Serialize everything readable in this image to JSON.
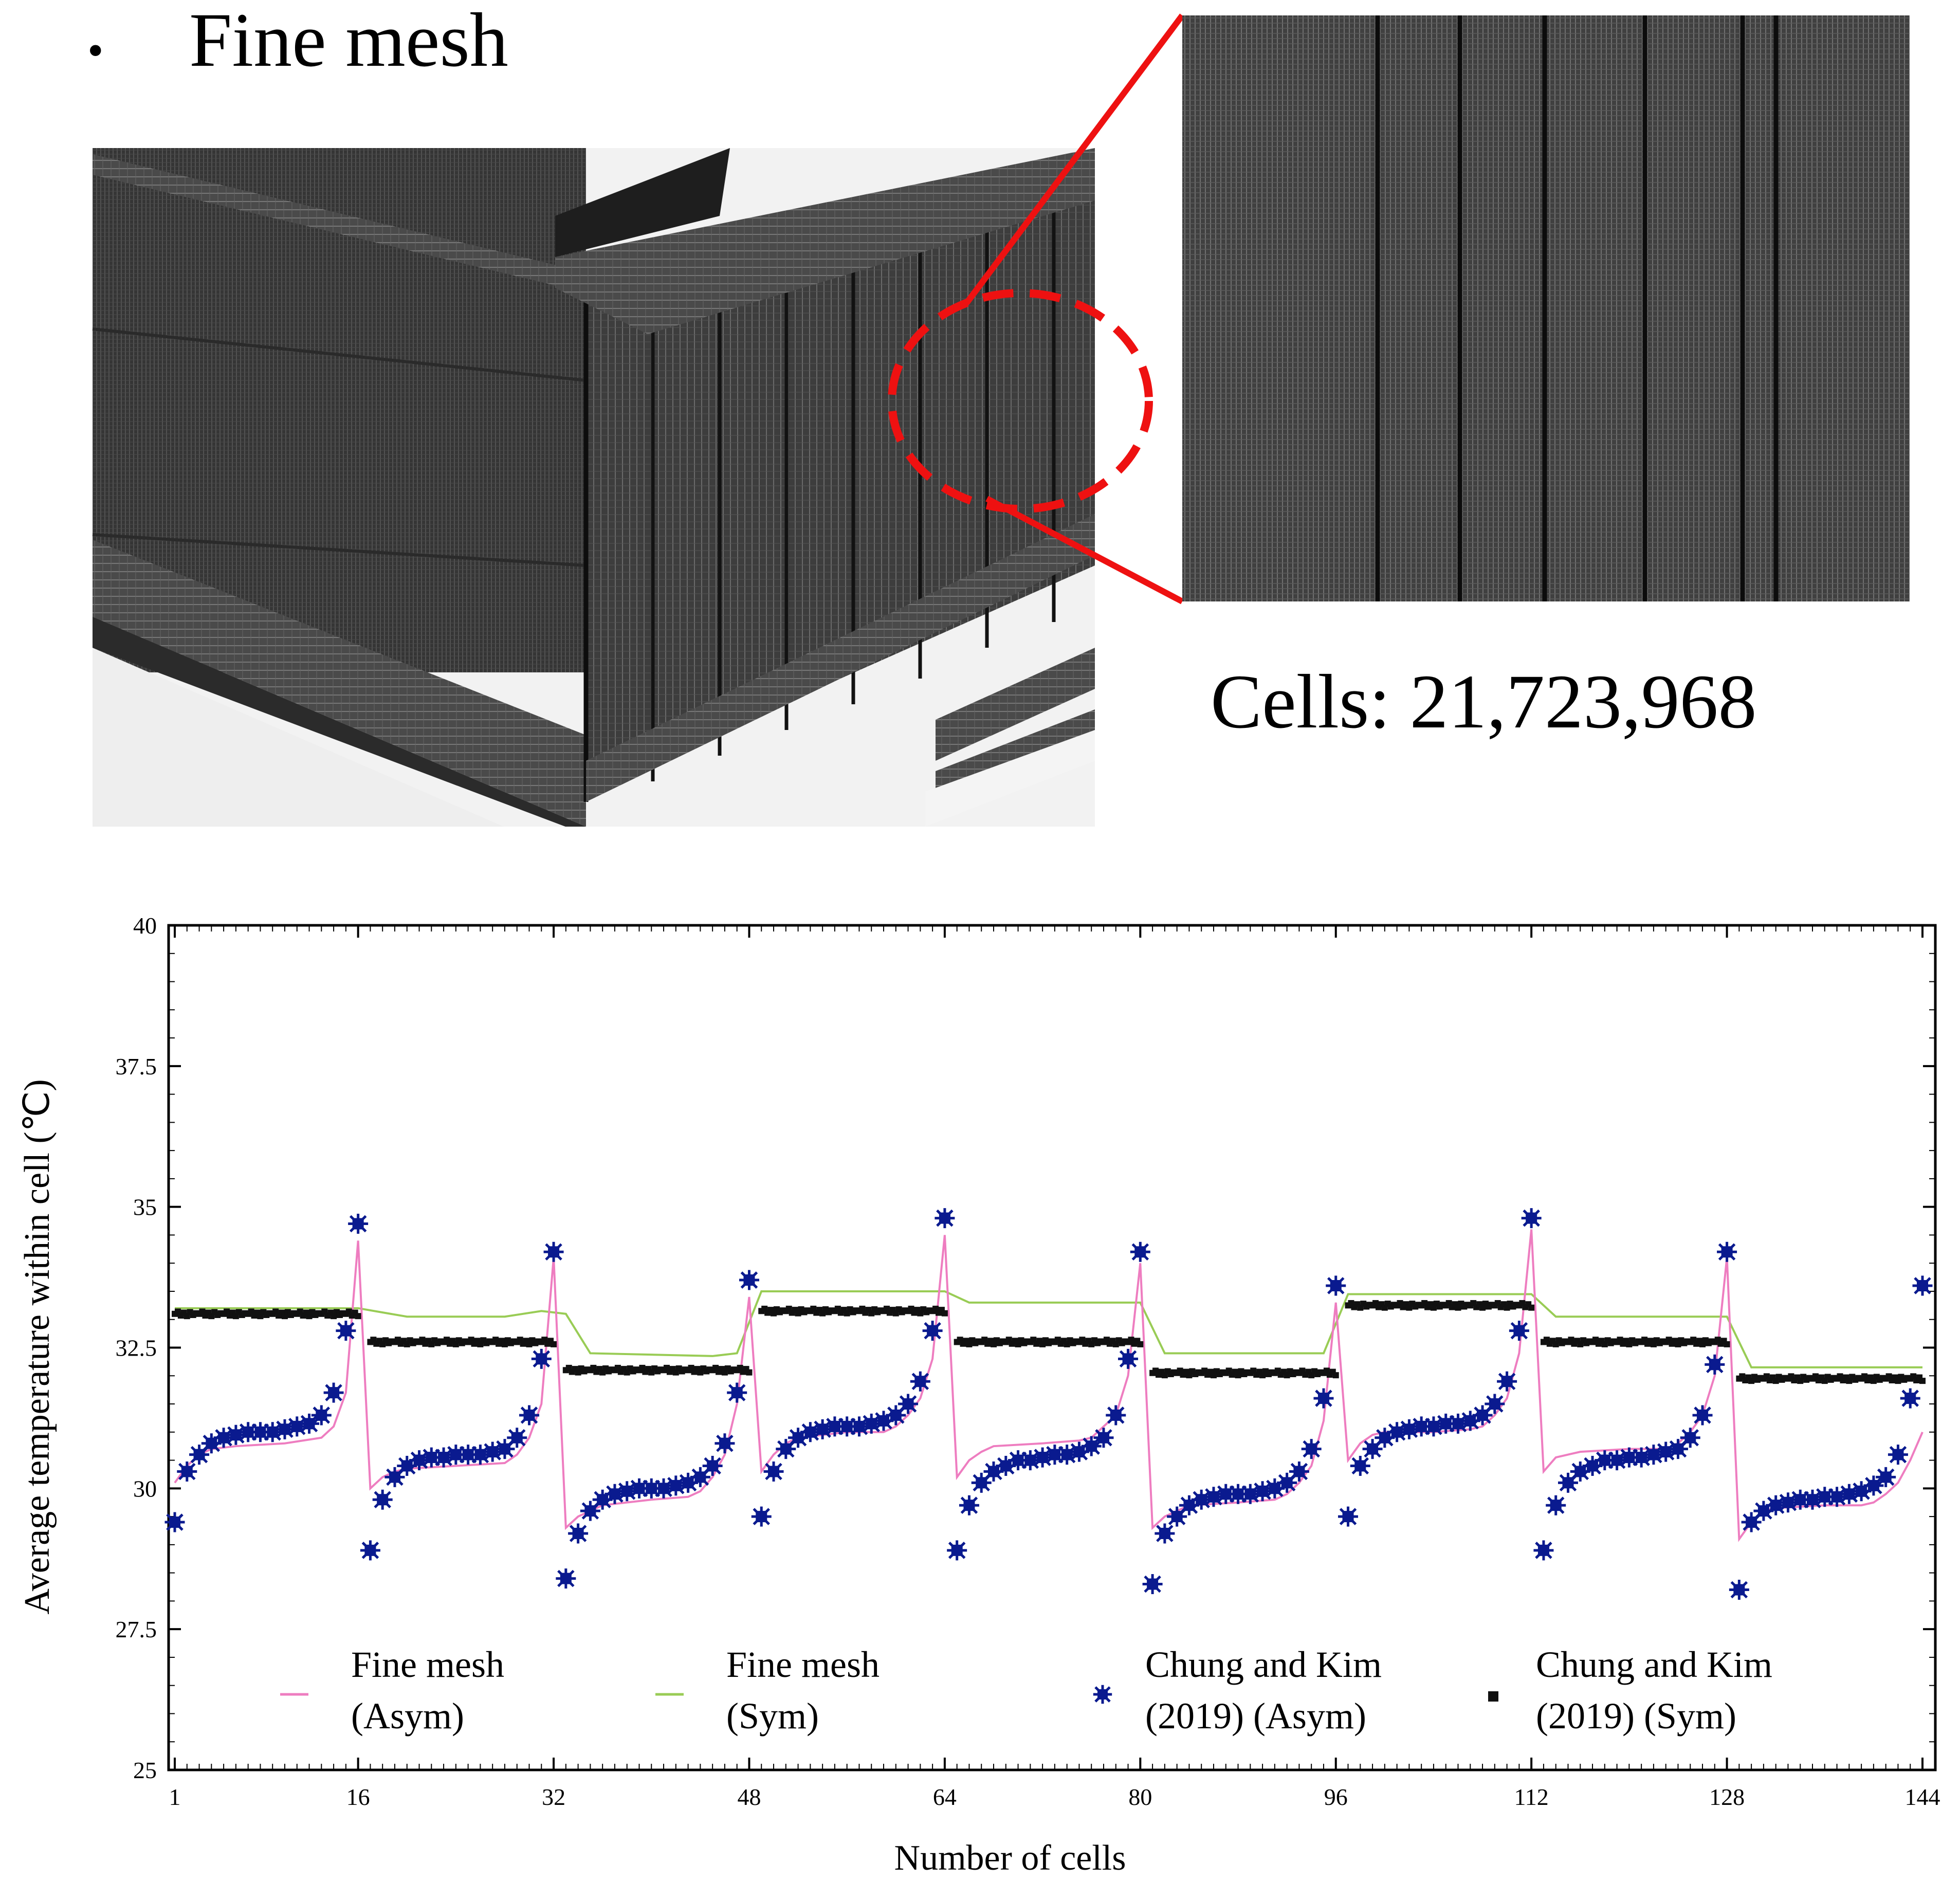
{
  "header": {
    "bullet": "•",
    "title": "Fine mesh"
  },
  "mesh_figure": {
    "cells_label": "Cells: 21,723,968",
    "colors": {
      "mesh_face": "#404040",
      "mesh_dark": "#2a2a2a",
      "highlight": "#ee1111"
    }
  },
  "chart_data": {
    "type": "line",
    "xlabel": "Number of cells",
    "ylabel": "Average temperature within cell (℃)",
    "xlim": [
      1,
      144
    ],
    "ylim": [
      25,
      40
    ],
    "x_ticks": [
      1,
      16,
      32,
      48,
      64,
      80,
      96,
      112,
      128,
      144
    ],
    "y_ticks": [
      25,
      27.5,
      30,
      32.5,
      35,
      37.5,
      40
    ],
    "y_tick_labels": [
      "25",
      "27.5",
      "30",
      "32.5",
      "35",
      "37.5",
      "40"
    ],
    "grid": false,
    "legend": [
      {
        "line1": "Fine mesh",
        "line2": "(Asym)",
        "color": "#ee7dc0",
        "marker": "line"
      },
      {
        "line1": "Fine mesh",
        "line2": "(Sym)",
        "color": "#99cc55",
        "marker": "line"
      },
      {
        "line1": "Chung and Kim",
        "line2": "(2019)  (Asym)",
        "color": "#0a1a8f",
        "marker": "x"
      },
      {
        "line1": "Chung and Kim",
        "line2": "(2019)  (Sym)",
        "color": "#111111",
        "marker": "square"
      }
    ],
    "asym_ref_points": [
      [
        1,
        29.4
      ],
      [
        2,
        30.3
      ],
      [
        3,
        30.6
      ],
      [
        4,
        30.8
      ],
      [
        5,
        30.9
      ],
      [
        6,
        30.95
      ],
      [
        7,
        31.0
      ],
      [
        8,
        31.0
      ],
      [
        9,
        31.0
      ],
      [
        10,
        31.05
      ],
      [
        11,
        31.1
      ],
      [
        12,
        31.15
      ],
      [
        13,
        31.3
      ],
      [
        14,
        31.7
      ],
      [
        15,
        32.8
      ],
      [
        16,
        34.7
      ],
      [
        17,
        28.9
      ],
      [
        18,
        29.8
      ],
      [
        19,
        30.2
      ],
      [
        20,
        30.4
      ],
      [
        21,
        30.5
      ],
      [
        22,
        30.55
      ],
      [
        23,
        30.55
      ],
      [
        24,
        30.6
      ],
      [
        25,
        30.6
      ],
      [
        26,
        30.6
      ],
      [
        27,
        30.65
      ],
      [
        28,
        30.7
      ],
      [
        29,
        30.9
      ],
      [
        30,
        31.3
      ],
      [
        31,
        32.3
      ],
      [
        32,
        34.2
      ],
      [
        33,
        28.4
      ],
      [
        34,
        29.2
      ],
      [
        35,
        29.6
      ],
      [
        36,
        29.8
      ],
      [
        37,
        29.9
      ],
      [
        38,
        29.95
      ],
      [
        39,
        30.0
      ],
      [
        40,
        30.0
      ],
      [
        41,
        30.0
      ],
      [
        42,
        30.05
      ],
      [
        43,
        30.1
      ],
      [
        44,
        30.2
      ],
      [
        45,
        30.4
      ],
      [
        46,
        30.8
      ],
      [
        47,
        31.7
      ],
      [
        48,
        33.7
      ],
      [
        49,
        29.5
      ],
      [
        50,
        30.3
      ],
      [
        51,
        30.7
      ],
      [
        52,
        30.9
      ],
      [
        53,
        31.0
      ],
      [
        54,
        31.05
      ],
      [
        55,
        31.1
      ],
      [
        56,
        31.1
      ],
      [
        57,
        31.1
      ],
      [
        58,
        31.15
      ],
      [
        59,
        31.2
      ],
      [
        60,
        31.3
      ],
      [
        61,
        31.5
      ],
      [
        62,
        31.9
      ],
      [
        63,
        32.8
      ],
      [
        64,
        34.8
      ],
      [
        65,
        28.9
      ],
      [
        66,
        29.7
      ],
      [
        67,
        30.1
      ],
      [
        68,
        30.3
      ],
      [
        69,
        30.4
      ],
      [
        70,
        30.5
      ],
      [
        71,
        30.5
      ],
      [
        72,
        30.55
      ],
      [
        73,
        30.6
      ],
      [
        74,
        30.6
      ],
      [
        75,
        30.65
      ],
      [
        76,
        30.75
      ],
      [
        77,
        30.9
      ],
      [
        78,
        31.3
      ],
      [
        79,
        32.3
      ],
      [
        80,
        34.2
      ],
      [
        81,
        28.3
      ],
      [
        82,
        29.2
      ],
      [
        83,
        29.5
      ],
      [
        84,
        29.7
      ],
      [
        85,
        29.8
      ],
      [
        86,
        29.85
      ],
      [
        87,
        29.9
      ],
      [
        88,
        29.9
      ],
      [
        89,
        29.9
      ],
      [
        90,
        29.95
      ],
      [
        91,
        30.0
      ],
      [
        92,
        30.1
      ],
      [
        93,
        30.3
      ],
      [
        94,
        30.7
      ],
      [
        95,
        31.6
      ],
      [
        96,
        33.6
      ],
      [
        97,
        29.5
      ],
      [
        98,
        30.4
      ],
      [
        99,
        30.7
      ],
      [
        100,
        30.9
      ],
      [
        101,
        31.0
      ],
      [
        102,
        31.05
      ],
      [
        103,
        31.1
      ],
      [
        104,
        31.1
      ],
      [
        105,
        31.15
      ],
      [
        106,
        31.15
      ],
      [
        107,
        31.2
      ],
      [
        108,
        31.3
      ],
      [
        109,
        31.5
      ],
      [
        110,
        31.9
      ],
      [
        111,
        32.8
      ],
      [
        112,
        34.8
      ],
      [
        113,
        28.9
      ],
      [
        114,
        29.7
      ],
      [
        115,
        30.1
      ],
      [
        116,
        30.3
      ],
      [
        117,
        30.4
      ],
      [
        118,
        30.5
      ],
      [
        119,
        30.5
      ],
      [
        120,
        30.55
      ],
      [
        121,
        30.55
      ],
      [
        122,
        30.6
      ],
      [
        123,
        30.65
      ],
      [
        124,
        30.7
      ],
      [
        125,
        30.9
      ],
      [
        126,
        31.3
      ],
      [
        127,
        32.2
      ],
      [
        128,
        34.2
      ],
      [
        129,
        28.2
      ],
      [
        130,
        29.4
      ],
      [
        131,
        29.6
      ],
      [
        132,
        29.7
      ],
      [
        133,
        29.75
      ],
      [
        134,
        29.8
      ],
      [
        135,
        29.8
      ],
      [
        136,
        29.85
      ],
      [
        137,
        29.85
      ],
      [
        138,
        29.9
      ],
      [
        139,
        29.95
      ],
      [
        140,
        30.05
      ],
      [
        141,
        30.2
      ],
      [
        142,
        30.6
      ],
      [
        143,
        31.6
      ],
      [
        144,
        33.6
      ]
    ],
    "sym_ref_levels": [
      {
        "from": 1,
        "to": 16,
        "y": 33.1
      },
      {
        "from": 17,
        "to": 32,
        "y": 32.6
      },
      {
        "from": 33,
        "to": 48,
        "y": 32.1
      },
      {
        "from": 49,
        "to": 64,
        "y": 33.15
      },
      {
        "from": 65,
        "to": 80,
        "y": 32.6
      },
      {
        "from": 81,
        "to": 96,
        "y": 32.05
      },
      {
        "from": 97,
        "to": 112,
        "y": 33.25
      },
      {
        "from": 113,
        "to": 128,
        "y": 32.6
      },
      {
        "from": 129,
        "to": 144,
        "y": 31.95
      }
    ],
    "sym_fine_mesh": [
      [
        1,
        33.2
      ],
      [
        16,
        33.2
      ],
      [
        20,
        33.05
      ],
      [
        28,
        33.05
      ],
      [
        31,
        33.15
      ],
      [
        33,
        33.1
      ],
      [
        35,
        32.4
      ],
      [
        45,
        32.35
      ],
      [
        47,
        32.4
      ],
      [
        49,
        33.5
      ],
      [
        64,
        33.5
      ],
      [
        66,
        33.3
      ],
      [
        80,
        33.3
      ],
      [
        82,
        32.4
      ],
      [
        95,
        32.4
      ],
      [
        97,
        33.45
      ],
      [
        112,
        33.45
      ],
      [
        114,
        33.05
      ],
      [
        128,
        33.05
      ],
      [
        130,
        32.15
      ],
      [
        144,
        32.15
      ]
    ],
    "asym_fine_mesh": [
      [
        1,
        30.1
      ],
      [
        2,
        30.4
      ],
      [
        3,
        30.6
      ],
      [
        4,
        30.7
      ],
      [
        6,
        30.75
      ],
      [
        10,
        30.8
      ],
      [
        13,
        30.9
      ],
      [
        14,
        31.1
      ],
      [
        15,
        31.7
      ],
      [
        16,
        34.4
      ],
      [
        17,
        30.0
      ],
      [
        18,
        30.2
      ],
      [
        19,
        30.3
      ],
      [
        20,
        30.35
      ],
      [
        24,
        30.4
      ],
      [
        28,
        30.45
      ],
      [
        29,
        30.6
      ],
      [
        30,
        30.9
      ],
      [
        31,
        31.5
      ],
      [
        32,
        34.1
      ],
      [
        33,
        29.3
      ],
      [
        34,
        29.5
      ],
      [
        35,
        29.6
      ],
      [
        36,
        29.7
      ],
      [
        40,
        29.8
      ],
      [
        43,
        29.85
      ],
      [
        44,
        29.95
      ],
      [
        45,
        30.2
      ],
      [
        46,
        30.6
      ],
      [
        47,
        31.5
      ],
      [
        48,
        33.4
      ],
      [
        49,
        30.3
      ],
      [
        50,
        30.6
      ],
      [
        51,
        30.8
      ],
      [
        52,
        30.9
      ],
      [
        56,
        31.0
      ],
      [
        59,
        31.0
      ],
      [
        60,
        31.1
      ],
      [
        61,
        31.3
      ],
      [
        62,
        31.6
      ],
      [
        63,
        32.3
      ],
      [
        64,
        34.5
      ],
      [
        65,
        30.2
      ],
      [
        66,
        30.5
      ],
      [
        67,
        30.65
      ],
      [
        68,
        30.75
      ],
      [
        72,
        30.8
      ],
      [
        75,
        30.85
      ],
      [
        76,
        30.9
      ],
      [
        77,
        31.1
      ],
      [
        78,
        31.3
      ],
      [
        79,
        32.0
      ],
      [
        80,
        34.0
      ],
      [
        81,
        29.3
      ],
      [
        82,
        29.5
      ],
      [
        83,
        29.6
      ],
      [
        84,
        29.7
      ],
      [
        88,
        29.75
      ],
      [
        91,
        29.8
      ],
      [
        92,
        29.9
      ],
      [
        93,
        30.1
      ],
      [
        94,
        30.4
      ],
      [
        95,
        31.2
      ],
      [
        96,
        33.3
      ],
      [
        97,
        30.5
      ],
      [
        98,
        30.8
      ],
      [
        99,
        30.95
      ],
      [
        100,
        31.0
      ],
      [
        104,
        31.0
      ],
      [
        107,
        31.05
      ],
      [
        108,
        31.1
      ],
      [
        109,
        31.3
      ],
      [
        110,
        31.6
      ],
      [
        111,
        32.4
      ],
      [
        112,
        34.6
      ],
      [
        113,
        30.3
      ],
      [
        114,
        30.55
      ],
      [
        115,
        30.6
      ],
      [
        116,
        30.65
      ],
      [
        120,
        30.7
      ],
      [
        123,
        30.7
      ],
      [
        124,
        30.8
      ],
      [
        125,
        31.0
      ],
      [
        126,
        31.3
      ],
      [
        127,
        32.0
      ],
      [
        128,
        34.1
      ],
      [
        129,
        29.1
      ],
      [
        130,
        29.4
      ],
      [
        131,
        29.6
      ],
      [
        132,
        29.65
      ],
      [
        136,
        29.7
      ],
      [
        139,
        29.7
      ],
      [
        140,
        29.75
      ],
      [
        141,
        29.9
      ],
      [
        142,
        30.1
      ],
      [
        143,
        30.5
      ],
      [
        144,
        31.0
      ]
    ]
  }
}
